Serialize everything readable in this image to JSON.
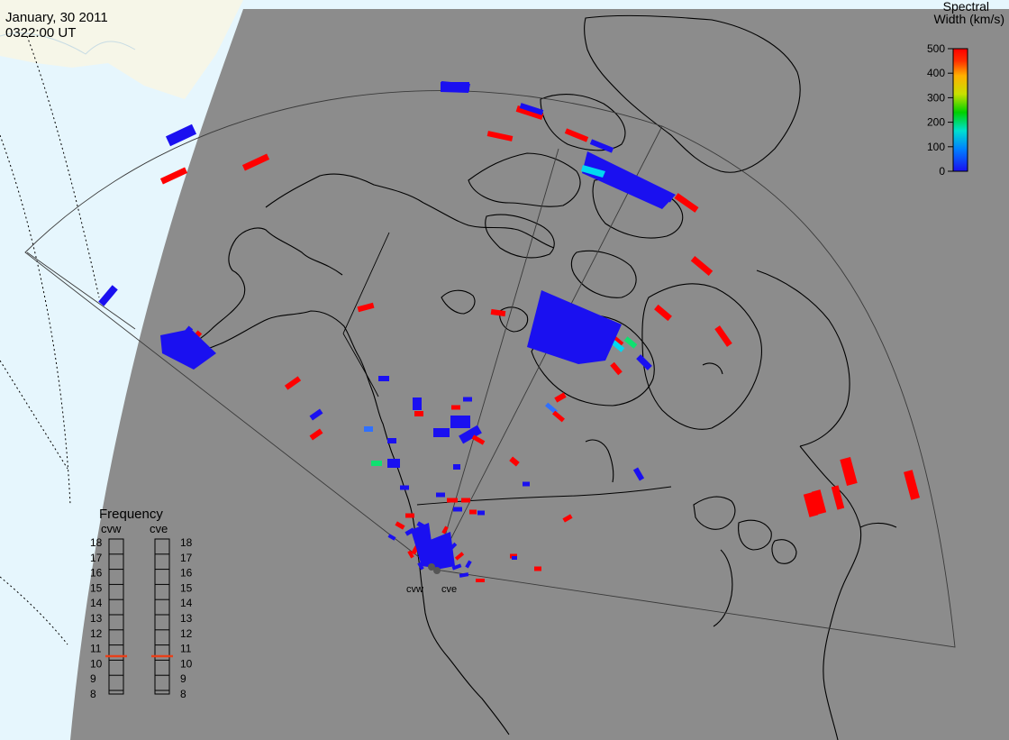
{
  "header": {
    "date": "January, 30 2011",
    "time": "0322:00 UT"
  },
  "colorbar": {
    "title_line1": "Spectral",
    "title_line2": "Width (km/s)",
    "ticks": [
      "500",
      "400",
      "300",
      "200",
      "100",
      "0"
    ],
    "min": 0,
    "max": 500
  },
  "frequency_panel": {
    "title": "Frequency",
    "radars": [
      {
        "code": "cvw",
        "value_mhz": 10.5
      },
      {
        "code": "cve",
        "value_mhz": 10.5
      }
    ],
    "scale_ticks": [
      "18",
      "17",
      "16",
      "15",
      "14",
      "13",
      "12",
      "11",
      "10",
      "9",
      "8"
    ],
    "scale_min": 8,
    "scale_max": 18
  },
  "radar_sites": [
    {
      "code": "cvw"
    },
    {
      "code": "cve"
    }
  ],
  "colors": {
    "night": "#8c8c8c",
    "day_land": "#f6f6e8",
    "day_ocean": "#e6f6fd",
    "terminator_accent": "#dcecf4",
    "width_low": "#1a10f0",
    "width_high": "#ff0000",
    "freq_marker": "#e8401a"
  },
  "scatter_width_scale": {
    "low_kms": 0,
    "high_kms": 500
  }
}
